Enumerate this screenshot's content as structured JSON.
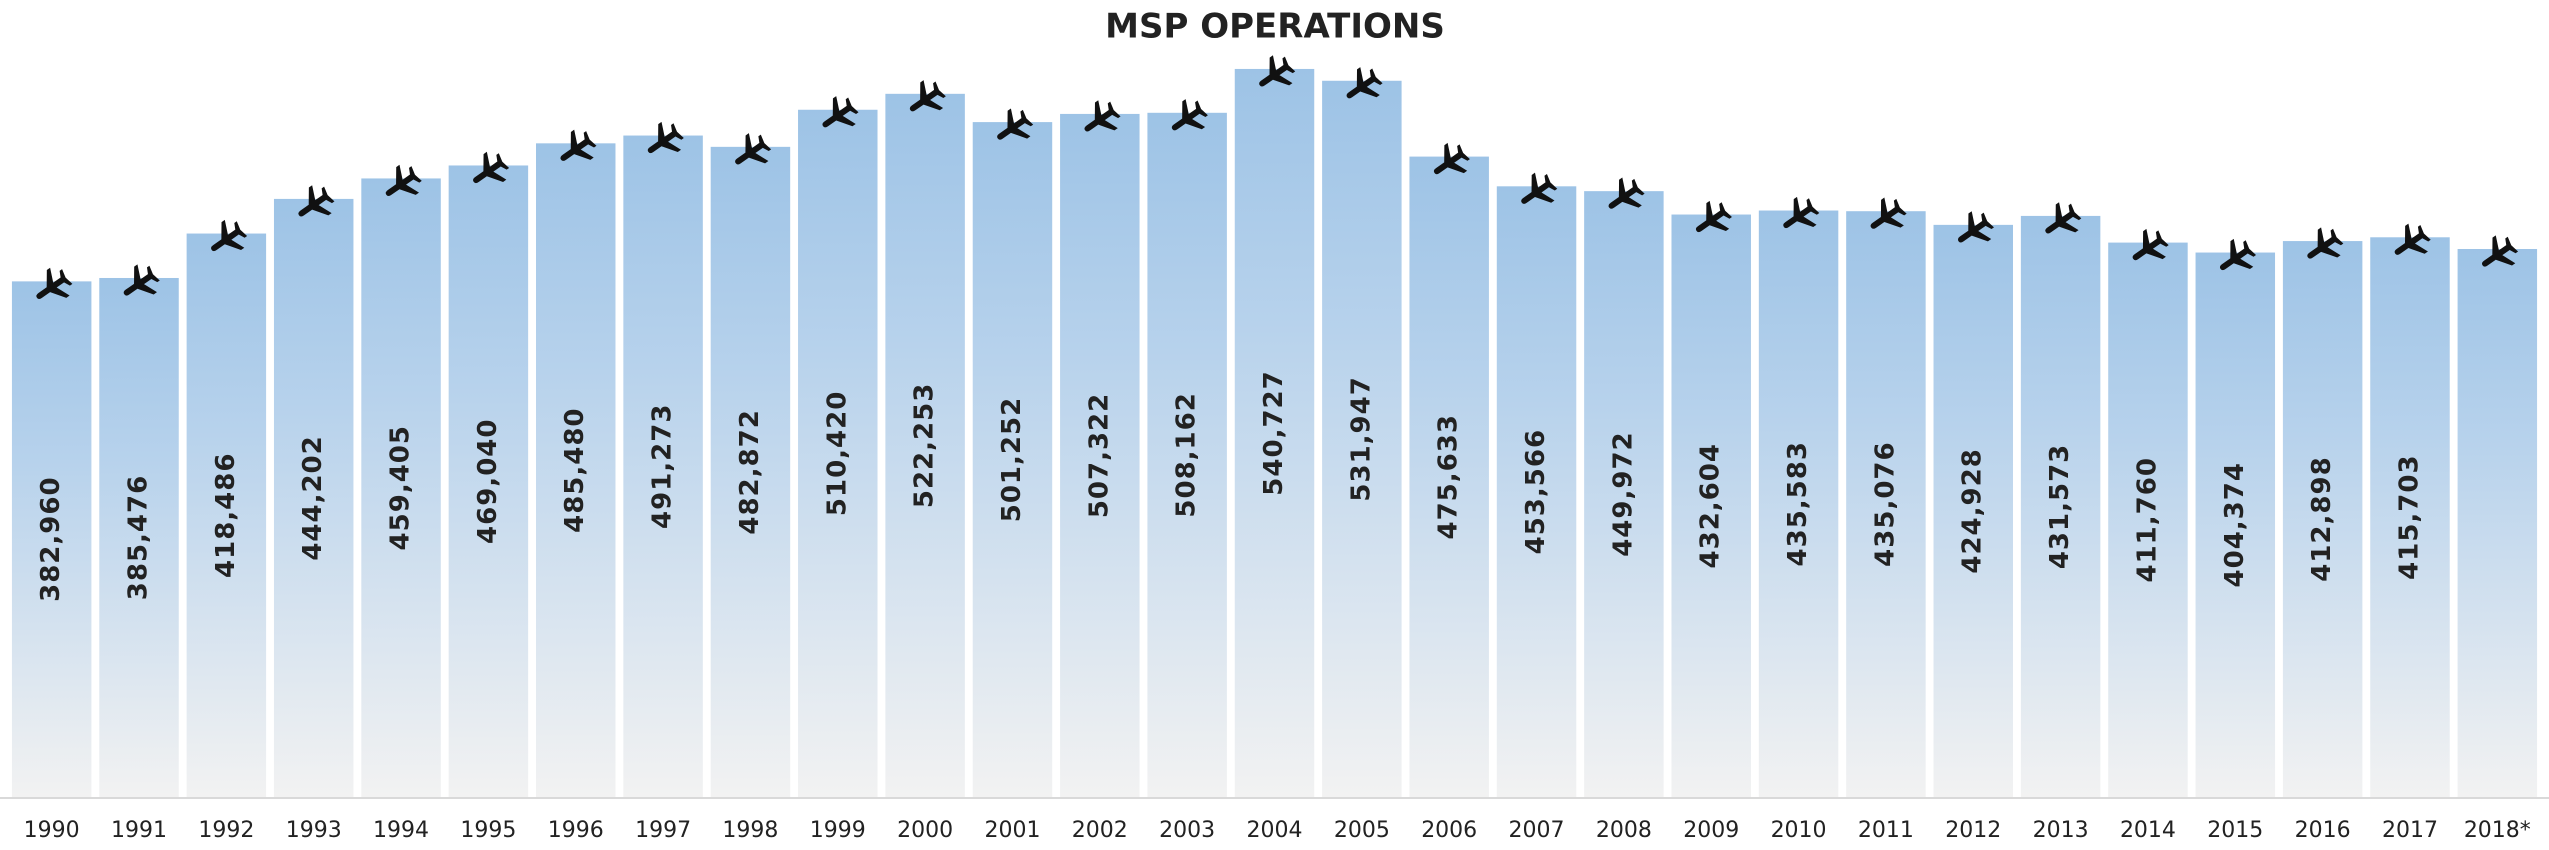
{
  "chart_data": {
    "type": "bar",
    "title": "MSP OPERATIONS",
    "categories": [
      "1990",
      "1991",
      "1992",
      "1993",
      "1994",
      "1995",
      "1996",
      "1997",
      "1998",
      "1999",
      "2000",
      "2001",
      "2002",
      "2003",
      "2004",
      "2005",
      "2006",
      "2007",
      "2008",
      "2009",
      "2010",
      "2011",
      "2012",
      "2013",
      "2014",
      "2015",
      "2016",
      "2017",
      "2018*"
    ],
    "values": [
      382960,
      385476,
      418486,
      444202,
      459405,
      469040,
      485480,
      491273,
      482872,
      510420,
      522253,
      501252,
      507322,
      508162,
      540727,
      531947,
      475633,
      453566,
      449972,
      432604,
      435583,
      435076,
      424928,
      431573,
      411760,
      404374,
      412898,
      415703,
      407000
    ],
    "value_labels": [
      "382,960",
      "385,476",
      "418,486",
      "444,202",
      "459,405",
      "469,040",
      "485,480",
      "491,273",
      "482,872",
      "510,420",
      "522,253",
      "501,252",
      "507,322",
      "508,162",
      "540,727",
      "531,947",
      "475,633",
      "453,566",
      "449,972",
      "432,604",
      "435,583",
      "435,076",
      "424,928",
      "431,573",
      "411,760",
      "404,374",
      "412,898",
      "415,703",
      null
    ],
    "color": "#9dc3e6",
    "ylim": [
      0,
      560000
    ]
  }
}
